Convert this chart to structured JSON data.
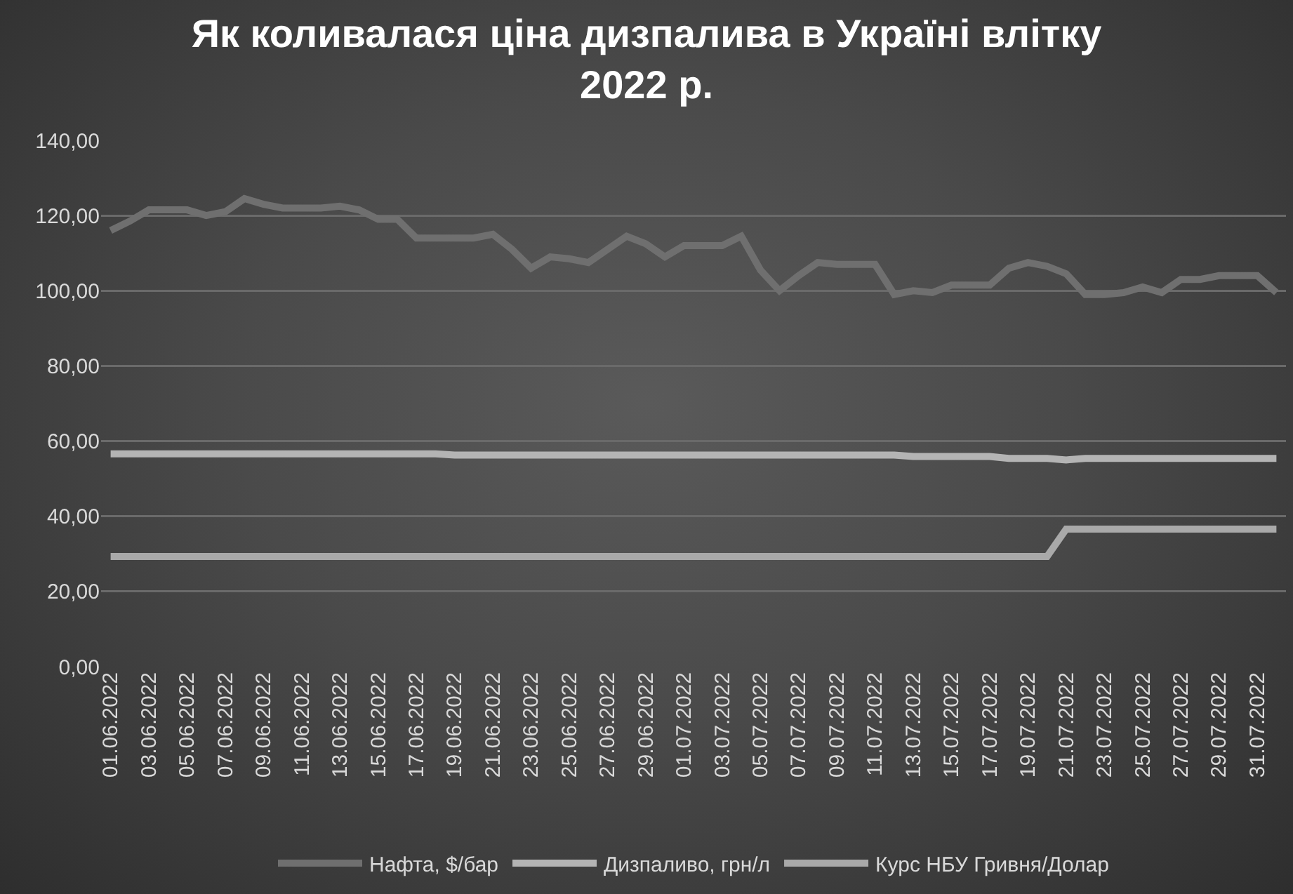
{
  "chart_data": {
    "type": "line",
    "title": "Як коливалася ціна дизпалива в Україні влітку 2022 р.",
    "x": [
      "2022-06-01",
      "2022-06-02",
      "2022-06-03",
      "2022-06-04",
      "2022-06-05",
      "2022-06-06",
      "2022-06-07",
      "2022-06-08",
      "2022-06-09",
      "2022-06-10",
      "2022-06-11",
      "2022-06-12",
      "2022-06-13",
      "2022-06-14",
      "2022-06-15",
      "2022-06-16",
      "2022-06-17",
      "2022-06-18",
      "2022-06-19",
      "2022-06-20",
      "2022-06-21",
      "2022-06-22",
      "2022-06-23",
      "2022-06-24",
      "2022-06-25",
      "2022-06-26",
      "2022-06-27",
      "2022-06-28",
      "2022-06-29",
      "2022-06-30",
      "2022-07-01",
      "2022-07-02",
      "2022-07-03",
      "2022-07-04",
      "2022-07-05",
      "2022-07-06",
      "2022-07-07",
      "2022-07-08",
      "2022-07-09",
      "2022-07-10",
      "2022-07-11",
      "2022-07-12",
      "2022-07-13",
      "2022-07-14",
      "2022-07-15",
      "2022-07-16",
      "2022-07-17",
      "2022-07-18",
      "2022-07-19",
      "2022-07-20",
      "2022-07-21",
      "2022-07-22",
      "2022-07-23",
      "2022-07-24",
      "2022-07-25",
      "2022-07-26",
      "2022-07-27",
      "2022-07-28",
      "2022-07-29",
      "2022-07-30",
      "2022-07-31",
      "2022-08-01"
    ],
    "series": [
      {
        "name": "Нафта, $/бар",
        "color": "#6f6f6f",
        "values": [
          116,
          118.5,
          121.5,
          121.5,
          121.5,
          120,
          121,
          124.5,
          123,
          122,
          122,
          122,
          122.5,
          121.5,
          119,
          119,
          114,
          114,
          114,
          114,
          115,
          111,
          106,
          109,
          108.5,
          107.5,
          111,
          114.5,
          112.5,
          109,
          112,
          112,
          112,
          114.5,
          105.5,
          100,
          104,
          107.5,
          107,
          107,
          107,
          99,
          100,
          99.5,
          101.5,
          101.5,
          101.5,
          106,
          107.5,
          106.5,
          104.5,
          99,
          99,
          99.5,
          101,
          99.5,
          103,
          103,
          104,
          104,
          104,
          99.5
        ]
      },
      {
        "name": "Дизпаливо, грн/л",
        "color": "#b4b4b4",
        "values": [
          56.6,
          56.6,
          56.6,
          56.6,
          56.6,
          56.6,
          56.6,
          56.6,
          56.6,
          56.6,
          56.6,
          56.6,
          56.6,
          56.6,
          56.6,
          56.6,
          56.6,
          56.6,
          56.3,
          56.3,
          56.3,
          56.3,
          56.3,
          56.3,
          56.3,
          56.3,
          56.3,
          56.3,
          56.3,
          56.3,
          56.3,
          56.3,
          56.3,
          56.3,
          56.3,
          56.3,
          56.3,
          56.3,
          56.3,
          56.3,
          56.3,
          56.3,
          55.9,
          55.9,
          55.9,
          55.9,
          55.9,
          55.4,
          55.4,
          55.4,
          55,
          55.4,
          55.4,
          55.4,
          55.4,
          55.4,
          55.4,
          55.4,
          55.4,
          55.4,
          55.4,
          55.4
        ]
      },
      {
        "name": "Курс НБУ Гривня/Долар",
        "color": "#a9a9a9",
        "values": [
          29.3,
          29.3,
          29.3,
          29.3,
          29.3,
          29.3,
          29.3,
          29.3,
          29.3,
          29.3,
          29.3,
          29.3,
          29.3,
          29.3,
          29.3,
          29.3,
          29.3,
          29.3,
          29.3,
          29.3,
          29.3,
          29.3,
          29.3,
          29.3,
          29.3,
          29.3,
          29.3,
          29.3,
          29.3,
          29.3,
          29.3,
          29.3,
          29.3,
          29.3,
          29.3,
          29.3,
          29.3,
          29.3,
          29.3,
          29.3,
          29.3,
          29.3,
          29.3,
          29.3,
          29.3,
          29.3,
          29.3,
          29.3,
          29.3,
          29.3,
          36.6,
          36.6,
          36.6,
          36.6,
          36.6,
          36.6,
          36.6,
          36.6,
          36.6,
          36.6,
          36.6,
          36.6
        ]
      }
    ],
    "xlim": [
      "2022-05-31T12:00",
      "2022-08-01T12:00"
    ],
    "xticks": [
      {
        "value": "2022-06-01",
        "label": "01.06.2022"
      },
      {
        "value": "2022-06-03",
        "label": "03.06.2022"
      },
      {
        "value": "2022-06-05",
        "label": "05.06.2022"
      },
      {
        "value": "2022-06-07",
        "label": "07.06.2022"
      },
      {
        "value": "2022-06-09",
        "label": "09.06.2022"
      },
      {
        "value": "2022-06-11",
        "label": "11.06.2022"
      },
      {
        "value": "2022-06-13",
        "label": "13.06.2022"
      },
      {
        "value": "2022-06-15",
        "label": "15.06.2022"
      },
      {
        "value": "2022-06-17",
        "label": "17.06.2022"
      },
      {
        "value": "2022-06-19",
        "label": "19.06.2022"
      },
      {
        "value": "2022-06-21",
        "label": "21.06.2022"
      },
      {
        "value": "2022-06-23",
        "label": "23.06.2022"
      },
      {
        "value": "2022-06-25",
        "label": "25.06.2022"
      },
      {
        "value": "2022-06-27",
        "label": "27.06.2022"
      },
      {
        "value": "2022-06-29",
        "label": "29.06.2022"
      },
      {
        "value": "2022-07-01",
        "label": "01.07.2022"
      },
      {
        "value": "2022-07-03",
        "label": "03.07.2022"
      },
      {
        "value": "2022-07-05",
        "label": "05.07.2022"
      },
      {
        "value": "2022-07-07",
        "label": "07.07.2022"
      },
      {
        "value": "2022-07-09",
        "label": "09.07.2022"
      },
      {
        "value": "2022-07-11",
        "label": "11.07.2022"
      },
      {
        "value": "2022-07-13",
        "label": "13.07.2022"
      },
      {
        "value": "2022-07-15",
        "label": "15.07.2022"
      },
      {
        "value": "2022-07-17",
        "label": "17.07.2022"
      },
      {
        "value": "2022-07-19",
        "label": "19.07.2022"
      },
      {
        "value": "2022-07-21",
        "label": "21.07.2022"
      },
      {
        "value": "2022-07-23",
        "label": "23.07.2022"
      },
      {
        "value": "2022-07-25",
        "label": "25.07.2022"
      },
      {
        "value": "2022-07-27",
        "label": "27.07.2022"
      },
      {
        "value": "2022-07-29",
        "label": "29.07.2022"
      },
      {
        "value": "2022-07-31",
        "label": "31.07.2022"
      }
    ],
    "ylim": [
      0,
      140
    ],
    "yticks": [
      {
        "value": 0,
        "label": "0,00"
      },
      {
        "value": 20,
        "label": "20,00"
      },
      {
        "value": 40,
        "label": "40,00"
      },
      {
        "value": 60,
        "label": "60,00"
      },
      {
        "value": 80,
        "label": "80,00"
      },
      {
        "value": 100,
        "label": "100,00"
      },
      {
        "value": 120,
        "label": "120,00"
      },
      {
        "value": 140,
        "label": "140,00"
      }
    ],
    "grid": "y",
    "legend": "bottom",
    "marker": "none",
    "line_style": "solid"
  }
}
